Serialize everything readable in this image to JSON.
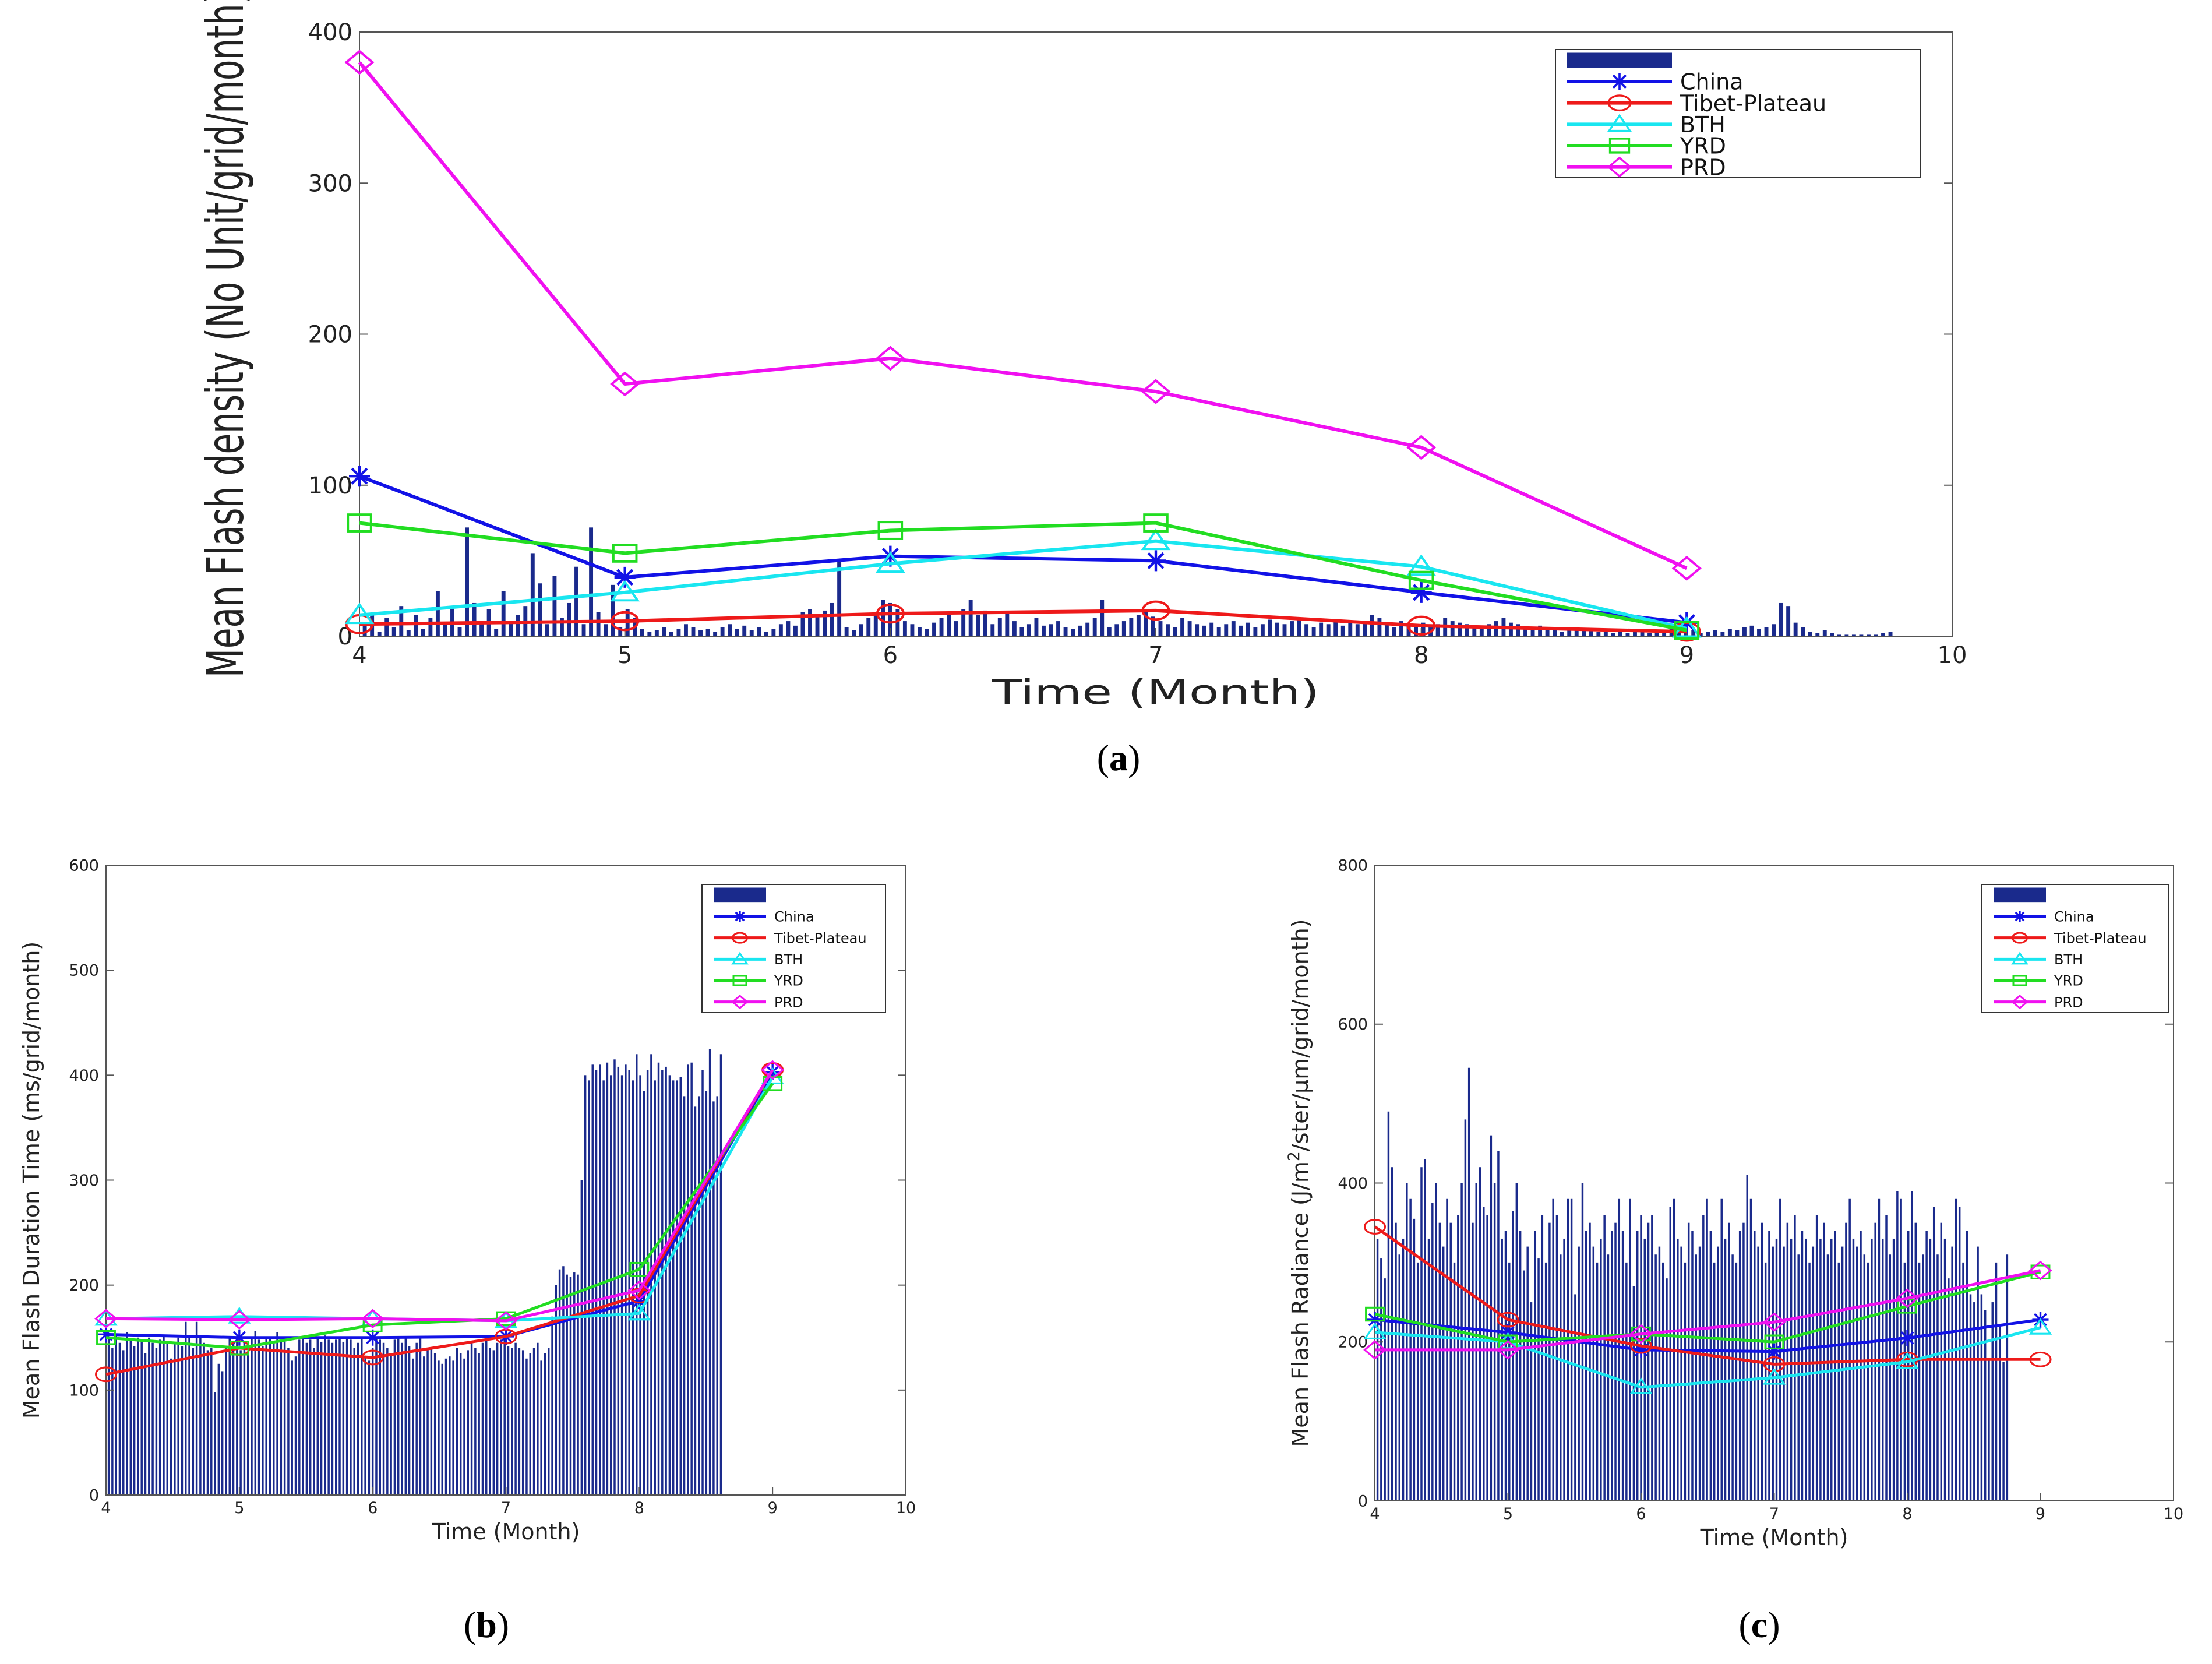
{
  "colors": {
    "bars": "#1a2a8c",
    "China": "#1212e6",
    "Tibet-Plateau": "#ee1a1a",
    "BTH": "#19e6f0",
    "YRD": "#22dd22",
    "PRD": "#f010f0"
  },
  "chart_data": [
    {
      "id": "a",
      "caption": "(a)",
      "caption_letter": "a",
      "type": "line",
      "xlabel": "Time (Month)",
      "ylabel": "Mean Flash density (No Unit/grid/month)",
      "xlim": [
        4,
        10
      ],
      "ylim": [
        0,
        400
      ],
      "xticks": [
        4,
        5,
        6,
        7,
        8,
        9,
        10
      ],
      "yticks": [
        0,
        100,
        200,
        300,
        400
      ],
      "grid": false,
      "legend_position": "top-right",
      "x": [
        4,
        5,
        6,
        7,
        8,
        9
      ],
      "series": [
        {
          "name": "China",
          "marker": "star",
          "values": [
            106,
            39,
            53,
            50,
            29,
            9
          ]
        },
        {
          "name": "Tibet-Plateau",
          "marker": "circle",
          "values": [
            8,
            10,
            15,
            17,
            7,
            3
          ]
        },
        {
          "name": "BTH",
          "marker": "triangle",
          "values": [
            14,
            29,
            48,
            63,
            46,
            5
          ]
        },
        {
          "name": "YRD",
          "marker": "square",
          "values": [
            75,
            55,
            70,
            75,
            37,
            4
          ]
        },
        {
          "name": "PRD",
          "marker": "diamond",
          "values": [
            380,
            167,
            184,
            162,
            125,
            45
          ]
        }
      ],
      "bars": {
        "name": "",
        "x_start": 4.02,
        "x_step": 0.0275,
        "values": [
          8,
          15,
          3,
          12,
          6,
          20,
          4,
          14,
          5,
          12,
          30,
          9,
          20,
          6,
          72,
          22,
          10,
          18,
          5,
          30,
          9,
          14,
          20,
          55,
          35,
          8,
          40,
          12,
          22,
          46,
          8,
          72,
          16,
          8,
          34,
          6,
          18,
          12,
          5,
          3,
          4,
          6,
          3,
          5,
          8,
          6,
          4,
          5,
          3,
          6,
          8,
          5,
          7,
          4,
          6,
          3,
          5,
          8,
          10,
          7,
          16,
          18,
          14,
          17,
          22,
          50,
          6,
          4,
          8,
          12,
          14,
          24,
          22,
          18,
          10,
          8,
          6,
          5,
          9,
          12,
          14,
          10,
          18,
          24,
          14,
          17,
          8,
          12,
          16,
          10,
          6,
          8,
          12,
          7,
          8,
          10,
          6,
          5,
          7,
          9,
          12,
          24,
          6,
          8,
          10,
          12,
          14,
          16,
          13,
          10,
          8,
          6,
          12,
          10,
          8,
          7,
          9,
          6,
          8,
          10,
          7,
          9,
          6,
          8,
          11,
          9,
          8,
          10,
          12,
          8,
          6,
          9,
          8,
          10,
          7,
          9,
          8,
          10,
          14,
          12,
          8,
          6,
          10,
          8,
          7,
          9,
          6,
          8,
          12,
          10,
          9,
          8,
          7,
          6,
          8,
          10,
          12,
          9,
          8,
          6,
          5,
          7,
          4,
          5,
          3,
          4,
          6,
          4,
          5,
          3,
          4,
          2,
          3,
          2,
          4,
          3,
          2,
          4,
          3,
          5,
          4,
          3,
          4,
          2,
          3,
          4,
          3,
          5,
          4,
          6,
          7,
          5,
          6,
          8,
          22,
          20,
          9,
          6,
          3,
          2,
          4,
          2,
          1,
          1,
          1,
          1,
          1,
          1,
          2,
          3
        ]
      }
    },
    {
      "id": "b",
      "caption": "(b)",
      "caption_letter": "b",
      "type": "line",
      "xlabel": "Time (Month)",
      "ylabel": "Mean Flash Duration Time (ms/grid/month)",
      "xlim": [
        4,
        10
      ],
      "ylim": [
        0,
        600
      ],
      "xticks": [
        4,
        5,
        6,
        7,
        8,
        9,
        10
      ],
      "yticks": [
        0,
        100,
        200,
        300,
        400,
        500,
        600
      ],
      "grid": false,
      "legend_position": "top-right",
      "x": [
        4,
        5,
        6,
        7,
        8,
        9
      ],
      "series": [
        {
          "name": "China",
          "marker": "star",
          "values": [
            153,
            150,
            150,
            151,
            185,
            403
          ]
        },
        {
          "name": "Tibet-Plateau",
          "marker": "circle",
          "values": [
            115,
            140,
            131,
            151,
            190,
            405
          ]
        },
        {
          "name": "BTH",
          "marker": "triangle",
          "values": [
            168,
            170,
            168,
            166,
            173,
            398
          ]
        },
        {
          "name": "YRD",
          "marker": "square",
          "values": [
            150,
            140,
            162,
            168,
            215,
            392
          ]
        },
        {
          "name": "PRD",
          "marker": "diamond",
          "values": [
            168,
            167,
            168,
            166,
            195,
            405
          ]
        }
      ],
      "bars": {
        "name": "",
        "x_start": 4.02,
        "x_step": 0.0275,
        "values": [
          150,
          140,
          152,
          145,
          138,
          155,
          148,
          142,
          150,
          147,
          135,
          150,
          145,
          140,
          148,
          152,
          146,
          130,
          144,
          150,
          142,
          165,
          150,
          140,
          165,
          150,
          145,
          138,
          140,
          98,
          125,
          118,
          140,
          150,
          147,
          148,
          138,
          145,
          135,
          150,
          156,
          148,
          142,
          150,
          150,
          146,
          155,
          148,
          150,
          140,
          128,
          132,
          148,
          150,
          145,
          148,
          140,
          150,
          146,
          152,
          148,
          145,
          148,
          150,
          146,
          150,
          148,
          140,
          145,
          150,
          132,
          128,
          140,
          150,
          148,
          145,
          140,
          135,
          148,
          150,
          145,
          150,
          142,
          130,
          145,
          150,
          132,
          138,
          140,
          135,
          128,
          125,
          130,
          132,
          128,
          140,
          135,
          130,
          138,
          145,
          140,
          135,
          145,
          148,
          140,
          138,
          145,
          148,
          150,
          142,
          140,
          145,
          140,
          138,
          130,
          135,
          140,
          145,
          128,
          135,
          140,
          170,
          200,
          215,
          218,
          210,
          208,
          212,
          210,
          300,
          400,
          395,
          410,
          405,
          410,
          395,
          412,
          400,
          415,
          408,
          400,
          410,
          405,
          395,
          420,
          400,
          385,
          405,
          420,
          395,
          412,
          405,
          408,
          400,
          395,
          395,
          398,
          380,
          410,
          412,
          370,
          380,
          405,
          385,
          425,
          375,
          380,
          420
        ]
      }
    },
    {
      "id": "c",
      "caption": "(c)",
      "caption_letter": "c",
      "type": "line",
      "xlabel": "Time (Month)",
      "ylabel": "Mean Flash Radiance (J/m²/ster/μm/grid/month)",
      "ylabel_pre": "Mean Flash Radiance (J/m",
      "ylabel_sup": "2",
      "ylabel_post": "/ster/μm/grid/month)",
      "xlim": [
        4,
        10
      ],
      "ylim": [
        0,
        800
      ],
      "xticks": [
        4,
        5,
        6,
        7,
        8,
        9,
        10
      ],
      "yticks": [
        0,
        200,
        400,
        600,
        800
      ],
      "grid": false,
      "legend_position": "top-right",
      "x": [
        4,
        5,
        6,
        7,
        8,
        9
      ],
      "series": [
        {
          "name": "China",
          "marker": "star",
          "values": [
            228,
            212,
            190,
            188,
            205,
            228
          ]
        },
        {
          "name": "Tibet-Plateau",
          "marker": "circle",
          "values": [
            345,
            228,
            195,
            172,
            178,
            178
          ]
        },
        {
          "name": "BTH",
          "marker": "triangle",
          "values": [
            212,
            200,
            143,
            155,
            175,
            218
          ]
        },
        {
          "name": "YRD",
          "marker": "square",
          "values": [
            235,
            200,
            210,
            200,
            245,
            288
          ]
        },
        {
          "name": "PRD",
          "marker": "diamond",
          "values": [
            190,
            190,
            210,
            225,
            255,
            290
          ]
        }
      ],
      "bars": {
        "name": "",
        "x_start": 4.02,
        "x_step": 0.0275,
        "values": [
          330,
          305,
          280,
          490,
          420,
          350,
          310,
          330,
          400,
          380,
          355,
          300,
          420,
          430,
          330,
          375,
          400,
          350,
          320,
          380,
          350,
          300,
          360,
          400,
          480,
          545,
          350,
          400,
          420,
          370,
          360,
          460,
          400,
          440,
          330,
          340,
          300,
          365,
          400,
          340,
          290,
          320,
          250,
          340,
          305,
          360,
          300,
          350,
          380,
          360,
          310,
          330,
          380,
          380,
          260,
          320,
          400,
          340,
          350,
          320,
          300,
          330,
          360,
          310,
          340,
          350,
          380,
          340,
          300,
          380,
          270,
          340,
          360,
          330,
          350,
          360,
          310,
          320,
          300,
          280,
          370,
          380,
          330,
          320,
          300,
          350,
          340,
          310,
          320,
          360,
          380,
          340,
          300,
          320,
          380,
          330,
          350,
          310,
          300,
          340,
          350,
          410,
          380,
          340,
          320,
          350,
          300,
          340,
          320,
          330,
          380,
          320,
          350,
          330,
          360,
          310,
          340,
          330,
          300,
          320,
          360,
          330,
          350,
          310,
          330,
          340,
          300,
          320,
          350,
          380,
          330,
          320,
          340,
          310,
          300,
          330,
          350,
          380,
          330,
          360,
          310,
          330,
          390,
          380,
          300,
          340,
          390,
          350,
          300,
          310,
          340,
          330,
          370,
          310,
          350,
          330,
          280,
          320,
          380,
          370,
          300,
          340,
          260,
          250,
          320,
          260,
          240,
          180,
          250,
          300,
          220,
          175,
          310
        ]
      }
    }
  ]
}
